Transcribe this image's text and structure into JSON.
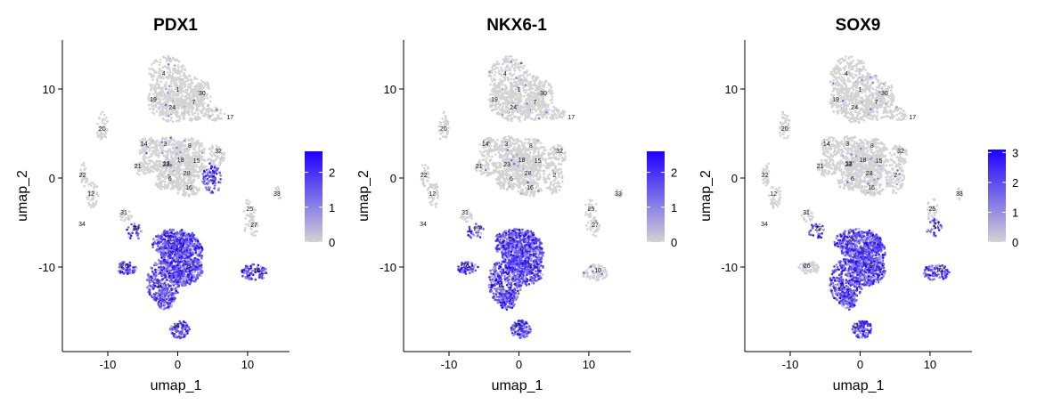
{
  "figure": {
    "layout": "1 row x 3 panels"
  },
  "gradient": {
    "low": "#d3d3d3",
    "high": "#1d00ff"
  },
  "cluster_label_color": "#111111",
  "chart_data": [
    {
      "type": "scatter",
      "title": "PDX1",
      "xlabel": "umap_1",
      "ylabel": "umap_2",
      "xlim": [
        -16.5,
        16
      ],
      "ylim": [
        -19.5,
        15.5
      ],
      "xticks": [
        -10,
        0,
        10
      ],
      "xtick_labels": [
        "-10",
        "0",
        "10"
      ],
      "yticks": [
        -10,
        0,
        10
      ],
      "ytick_labels": [
        "-10",
        "0",
        "10"
      ],
      "grid": false,
      "legend": {
        "position": "right",
        "min": 0,
        "max": 2.6,
        "ticks": [
          0,
          1,
          2
        ],
        "tick_labels": [
          "0",
          "1",
          "2"
        ]
      },
      "high_expression_clusters": [
        "0",
        "2",
        "5",
        "9",
        "10",
        "11",
        "13",
        "26",
        "29"
      ],
      "cluster_labels": [
        {
          "label": "4",
          "x": -2,
          "y": 11.5
        },
        {
          "label": "1",
          "x": 0,
          "y": 9.7
        },
        {
          "label": "30",
          "x": 3.5,
          "y": 9.3
        },
        {
          "label": "19",
          "x": -3.5,
          "y": 8.6
        },
        {
          "label": "7",
          "x": 2.3,
          "y": 8.3
        },
        {
          "label": "24",
          "x": -0.8,
          "y": 7.7
        },
        {
          "label": "17",
          "x": 7.5,
          "y": 6.6
        },
        {
          "label": "20",
          "x": -10.8,
          "y": 5.3
        },
        {
          "label": "14",
          "x": -4.8,
          "y": 3.6
        },
        {
          "label": "3",
          "x": -1.8,
          "y": 3.6
        },
        {
          "label": "8",
          "x": 1.7,
          "y": 3.4
        },
        {
          "label": "32",
          "x": 5.8,
          "y": 2.8
        },
        {
          "label": "13",
          "x": -1.6,
          "y": 1.4
        },
        {
          "label": "18",
          "x": 0.4,
          "y": 1.8
        },
        {
          "label": "15",
          "x": 2.7,
          "y": 1.7
        },
        {
          "label": "21",
          "x": -5.7,
          "y": 1.1
        },
        {
          "label": "23",
          "x": -1.7,
          "y": 1.3
        },
        {
          "label": "28",
          "x": 1.3,
          "y": 0.3
        },
        {
          "label": "22",
          "x": -13.6,
          "y": 0.1
        },
        {
          "label": "6",
          "x": -1.1,
          "y": -0.3
        },
        {
          "label": "2",
          "x": 5.1,
          "y": 0.1
        },
        {
          "label": "16",
          "x": 1.6,
          "y": -1.3
        },
        {
          "label": "12",
          "x": -12.4,
          "y": -2.0
        },
        {
          "label": "33",
          "x": 14.2,
          "y": -2.0
        },
        {
          "label": "31",
          "x": -7.7,
          "y": -4.1
        },
        {
          "label": "25",
          "x": 10.3,
          "y": -3.7
        },
        {
          "label": "34",
          "x": -13.7,
          "y": -5.4
        },
        {
          "label": "29",
          "x": -6.0,
          "y": -5.9
        },
        {
          "label": "27",
          "x": 10.9,
          "y": -5.5
        },
        {
          "label": "5",
          "x": -1.2,
          "y": -7.1
        },
        {
          "label": "0",
          "x": 0.4,
          "y": -8.3
        },
        {
          "label": "10",
          "x": 11.3,
          "y": -10.6
        },
        {
          "label": "26",
          "x": -7.6,
          "y": -10.1
        },
        {
          "label": "9",
          "x": 1.6,
          "y": -10.1
        },
        {
          "label": "11",
          "x": -2.6,
          "y": -12.3
        },
        {
          "label": "13",
          "x": -0.2,
          "y": -16.8
        }
      ]
    },
    {
      "type": "scatter",
      "title": "NKX6-1",
      "xlabel": "umap_1",
      "ylabel": "umap_2",
      "xlim": [
        -16.5,
        16
      ],
      "ylim": [
        -19.5,
        15.5
      ],
      "xticks": [
        -10,
        0,
        10
      ],
      "xtick_labels": [
        "-10",
        "0",
        "10"
      ],
      "yticks": [
        -10,
        0,
        10
      ],
      "ytick_labels": [
        "-10",
        "0",
        "10"
      ],
      "grid": false,
      "legend": {
        "position": "right",
        "min": 0,
        "max": 2.6,
        "ticks": [
          0,
          1,
          2
        ],
        "tick_labels": [
          "0",
          "1",
          "2"
        ]
      },
      "high_expression_clusters": [
        "0",
        "5",
        "9",
        "11",
        "13",
        "26",
        "29"
      ],
      "cluster_labels": [
        {
          "label": "4",
          "x": -2,
          "y": 11.5
        },
        {
          "label": "1",
          "x": 0,
          "y": 9.7
        },
        {
          "label": "30",
          "x": 3.5,
          "y": 9.3
        },
        {
          "label": "19",
          "x": -3.5,
          "y": 8.6
        },
        {
          "label": "7",
          "x": 2.3,
          "y": 8.3
        },
        {
          "label": "24",
          "x": -0.8,
          "y": 7.7
        },
        {
          "label": "17",
          "x": 7.5,
          "y": 6.6
        },
        {
          "label": "20",
          "x": -10.8,
          "y": 5.3
        },
        {
          "label": "14",
          "x": -4.8,
          "y": 3.6
        },
        {
          "label": "3",
          "x": -1.8,
          "y": 3.6
        },
        {
          "label": "8",
          "x": 1.7,
          "y": 3.4
        },
        {
          "label": "32",
          "x": 5.8,
          "y": 2.8
        },
        {
          "label": "18",
          "x": 0.4,
          "y": 1.8
        },
        {
          "label": "15",
          "x": 2.7,
          "y": 1.7
        },
        {
          "label": "21",
          "x": -5.7,
          "y": 1.1
        },
        {
          "label": "23",
          "x": -1.7,
          "y": 1.3
        },
        {
          "label": "28",
          "x": 1.3,
          "y": 0.3
        },
        {
          "label": "22",
          "x": -13.6,
          "y": 0.1
        },
        {
          "label": "6",
          "x": -1.1,
          "y": -0.3
        },
        {
          "label": "2",
          "x": 5.1,
          "y": 0.1
        },
        {
          "label": "16",
          "x": 1.6,
          "y": -1.3
        },
        {
          "label": "12",
          "x": -12.4,
          "y": -2.0
        },
        {
          "label": "33",
          "x": 14.2,
          "y": -2.0
        },
        {
          "label": "31",
          "x": -7.7,
          "y": -4.1
        },
        {
          "label": "25",
          "x": 10.3,
          "y": -3.7
        },
        {
          "label": "34",
          "x": -13.7,
          "y": -5.4
        },
        {
          "label": "29",
          "x": -6.0,
          "y": -5.9
        },
        {
          "label": "27",
          "x": 10.9,
          "y": -5.5
        },
        {
          "label": "5",
          "x": -1.2,
          "y": -7.1
        },
        {
          "label": "0",
          "x": 0.4,
          "y": -8.3
        },
        {
          "label": "10",
          "x": 11.3,
          "y": -10.6
        },
        {
          "label": "26",
          "x": -7.6,
          "y": -10.1
        },
        {
          "label": "9",
          "x": 1.6,
          "y": -10.1
        },
        {
          "label": "11",
          "x": -2.6,
          "y": -12.3
        },
        {
          "label": "13",
          "x": -0.2,
          "y": -16.8
        }
      ]
    },
    {
      "type": "scatter",
      "title": "SOX9",
      "xlabel": "umap_1",
      "ylabel": "umap_2",
      "xlim": [
        -16.5,
        16
      ],
      "ylim": [
        -19.5,
        15.5
      ],
      "xticks": [
        -10,
        0,
        10
      ],
      "xtick_labels": [
        "-10",
        "0",
        "10"
      ],
      "yticks": [
        -10,
        0,
        10
      ],
      "ytick_labels": [
        "-10",
        "0",
        "10"
      ],
      "grid": false,
      "legend": {
        "position": "right",
        "min": 0,
        "max": 3.1,
        "ticks": [
          0,
          1,
          2,
          3
        ],
        "tick_labels": [
          "0",
          "1",
          "2",
          "3"
        ]
      },
      "high_expression_clusters": [
        "0",
        "5",
        "9",
        "10",
        "11",
        "13",
        "27",
        "29"
      ],
      "cluster_labels": [
        {
          "label": "4",
          "x": -2,
          "y": 11.5
        },
        {
          "label": "1",
          "x": 0,
          "y": 9.7
        },
        {
          "label": "30",
          "x": 3.5,
          "y": 9.3
        },
        {
          "label": "19",
          "x": -3.5,
          "y": 8.6
        },
        {
          "label": "7",
          "x": 2.3,
          "y": 8.3
        },
        {
          "label": "24",
          "x": -0.8,
          "y": 7.7
        },
        {
          "label": "17",
          "x": 7.5,
          "y": 6.6
        },
        {
          "label": "20",
          "x": -10.8,
          "y": 5.3
        },
        {
          "label": "14",
          "x": -4.8,
          "y": 3.6
        },
        {
          "label": "3",
          "x": -1.8,
          "y": 3.6
        },
        {
          "label": "8",
          "x": 1.7,
          "y": 3.4
        },
        {
          "label": "32",
          "x": 5.8,
          "y": 2.8
        },
        {
          "label": "13",
          "x": -1.6,
          "y": 1.4
        },
        {
          "label": "18",
          "x": 0.4,
          "y": 1.8
        },
        {
          "label": "15",
          "x": 2.7,
          "y": 1.7
        },
        {
          "label": "21",
          "x": -5.7,
          "y": 1.1
        },
        {
          "label": "23",
          "x": -1.7,
          "y": 1.3
        },
        {
          "label": "28",
          "x": 1.3,
          "y": 0.3
        },
        {
          "label": "22",
          "x": -13.6,
          "y": 0.1
        },
        {
          "label": "6",
          "x": -1.1,
          "y": -0.3
        },
        {
          "label": "2",
          "x": 5.1,
          "y": 0.1
        },
        {
          "label": "16",
          "x": 1.6,
          "y": -1.3
        },
        {
          "label": "12",
          "x": -12.4,
          "y": -2.0
        },
        {
          "label": "33",
          "x": 14.2,
          "y": -2.0
        },
        {
          "label": "31",
          "x": -7.7,
          "y": -4.1
        },
        {
          "label": "25",
          "x": 10.3,
          "y": -3.7
        },
        {
          "label": "34",
          "x": -13.7,
          "y": -5.4
        },
        {
          "label": "29",
          "x": -6.0,
          "y": -5.9
        },
        {
          "label": "27",
          "x": 10.9,
          "y": -5.5
        },
        {
          "label": "5",
          "x": -1.2,
          "y": -7.1
        },
        {
          "label": "0",
          "x": 0.4,
          "y": -8.3
        },
        {
          "label": "10",
          "x": 11.3,
          "y": -10.6
        },
        {
          "label": "26",
          "x": -7.6,
          "y": -10.1
        },
        {
          "label": "9",
          "x": 1.6,
          "y": -10.1
        },
        {
          "label": "11",
          "x": -2.6,
          "y": -12.3
        },
        {
          "label": "13",
          "x": -0.2,
          "y": -16.8
        }
      ]
    }
  ]
}
